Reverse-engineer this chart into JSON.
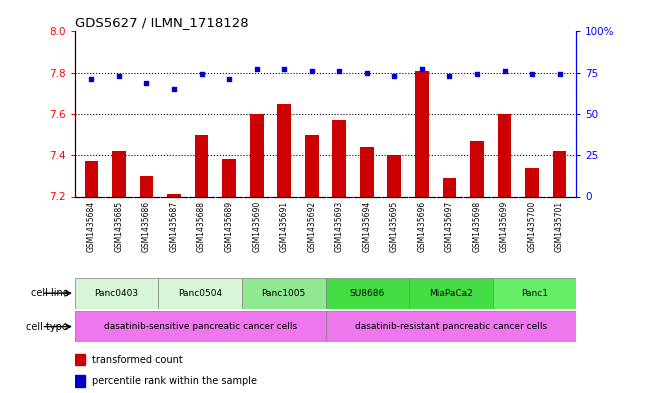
{
  "title": "GDS5627 / ILMN_1718128",
  "samples": [
    "GSM1435684",
    "GSM1435685",
    "GSM1435686",
    "GSM1435687",
    "GSM1435688",
    "GSM1435689",
    "GSM1435690",
    "GSM1435691",
    "GSM1435692",
    "GSM1435693",
    "GSM1435694",
    "GSM1435695",
    "GSM1435696",
    "GSM1435697",
    "GSM1435698",
    "GSM1435699",
    "GSM1435700",
    "GSM1435701"
  ],
  "transformed_counts": [
    7.37,
    7.42,
    7.3,
    7.21,
    7.5,
    7.38,
    7.6,
    7.65,
    7.5,
    7.57,
    7.44,
    7.4,
    7.81,
    7.29,
    7.47,
    7.6,
    7.34,
    7.42
  ],
  "percentile_ranks": [
    71,
    73,
    69,
    65,
    74,
    71,
    77,
    77,
    76,
    76,
    75,
    73,
    77,
    73,
    74,
    76,
    74,
    74
  ],
  "ylim_left": [
    7.2,
    8.0
  ],
  "ylim_right": [
    0,
    100
  ],
  "yticks_left": [
    7.2,
    7.4,
    7.6,
    7.8,
    8.0
  ],
  "yticks_right": [
    0,
    25,
    50,
    75,
    100
  ],
  "ytick_labels_right": [
    "0",
    "25",
    "50",
    "75",
    "100%"
  ],
  "cell_lines": [
    {
      "name": "Panc0403",
      "start": 0,
      "end": 2,
      "color": "#d8f5d8"
    },
    {
      "name": "Panc0504",
      "start": 3,
      "end": 5,
      "color": "#d8f5d8"
    },
    {
      "name": "Panc1005",
      "start": 6,
      "end": 8,
      "color": "#90e890"
    },
    {
      "name": "SU8686",
      "start": 9,
      "end": 11,
      "color": "#44dd44"
    },
    {
      "name": "MiaPaCa2",
      "start": 12,
      "end": 14,
      "color": "#44dd44"
    },
    {
      "name": "Panc1",
      "start": 15,
      "end": 17,
      "color": "#66ee66"
    }
  ],
  "cell_types": [
    {
      "name": "dasatinib-sensitive pancreatic cancer cells",
      "start": 0,
      "end": 8,
      "color": "#ee77ee"
    },
    {
      "name": "dasatinib-resistant pancreatic cancer cells",
      "start": 9,
      "end": 17,
      "color": "#ee77ee"
    }
  ],
  "bar_color": "#cc0000",
  "dot_color": "#0000cc",
  "background_color": "#ffffff",
  "xtick_bg": "#d0d0d0"
}
